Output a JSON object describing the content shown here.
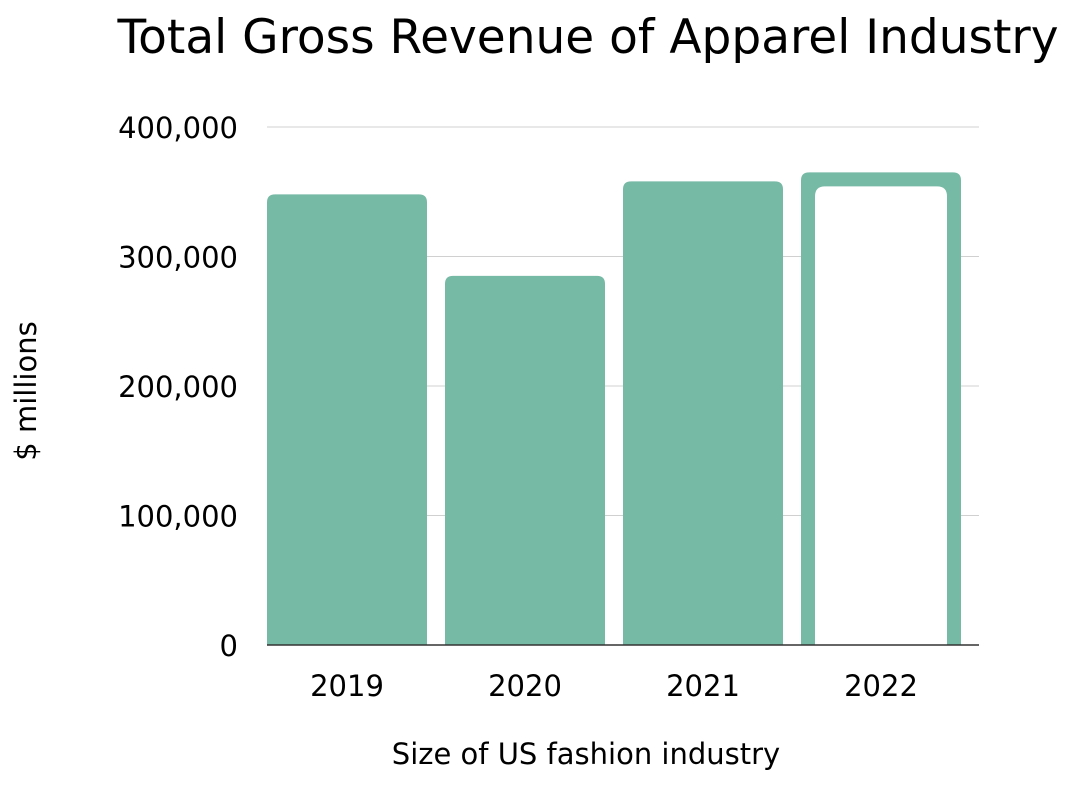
{
  "chart_data": {
    "type": "bar",
    "title": "Total Gross Revenue of Apparel Industry",
    "xlabel": "Size of US fashion industry",
    "ylabel": "$ millions",
    "categories": [
      "2019",
      "2020",
      "2021",
      "2022"
    ],
    "values": [
      348000,
      285000,
      358000,
      365000
    ],
    "ylim": [
      0,
      400000
    ],
    "yticks": [
      0,
      100000,
      200000,
      300000,
      400000
    ],
    "ytick_labels": [
      "0",
      "100,000",
      "200,000",
      "300,000",
      "400,000"
    ],
    "bar_color": "#76b9a5",
    "highlight": {
      "category": "2022",
      "style": "outlined"
    },
    "grid": true,
    "gridline_color": "#d0d0d0",
    "baseline_color": "#333333",
    "legend": "none"
  }
}
